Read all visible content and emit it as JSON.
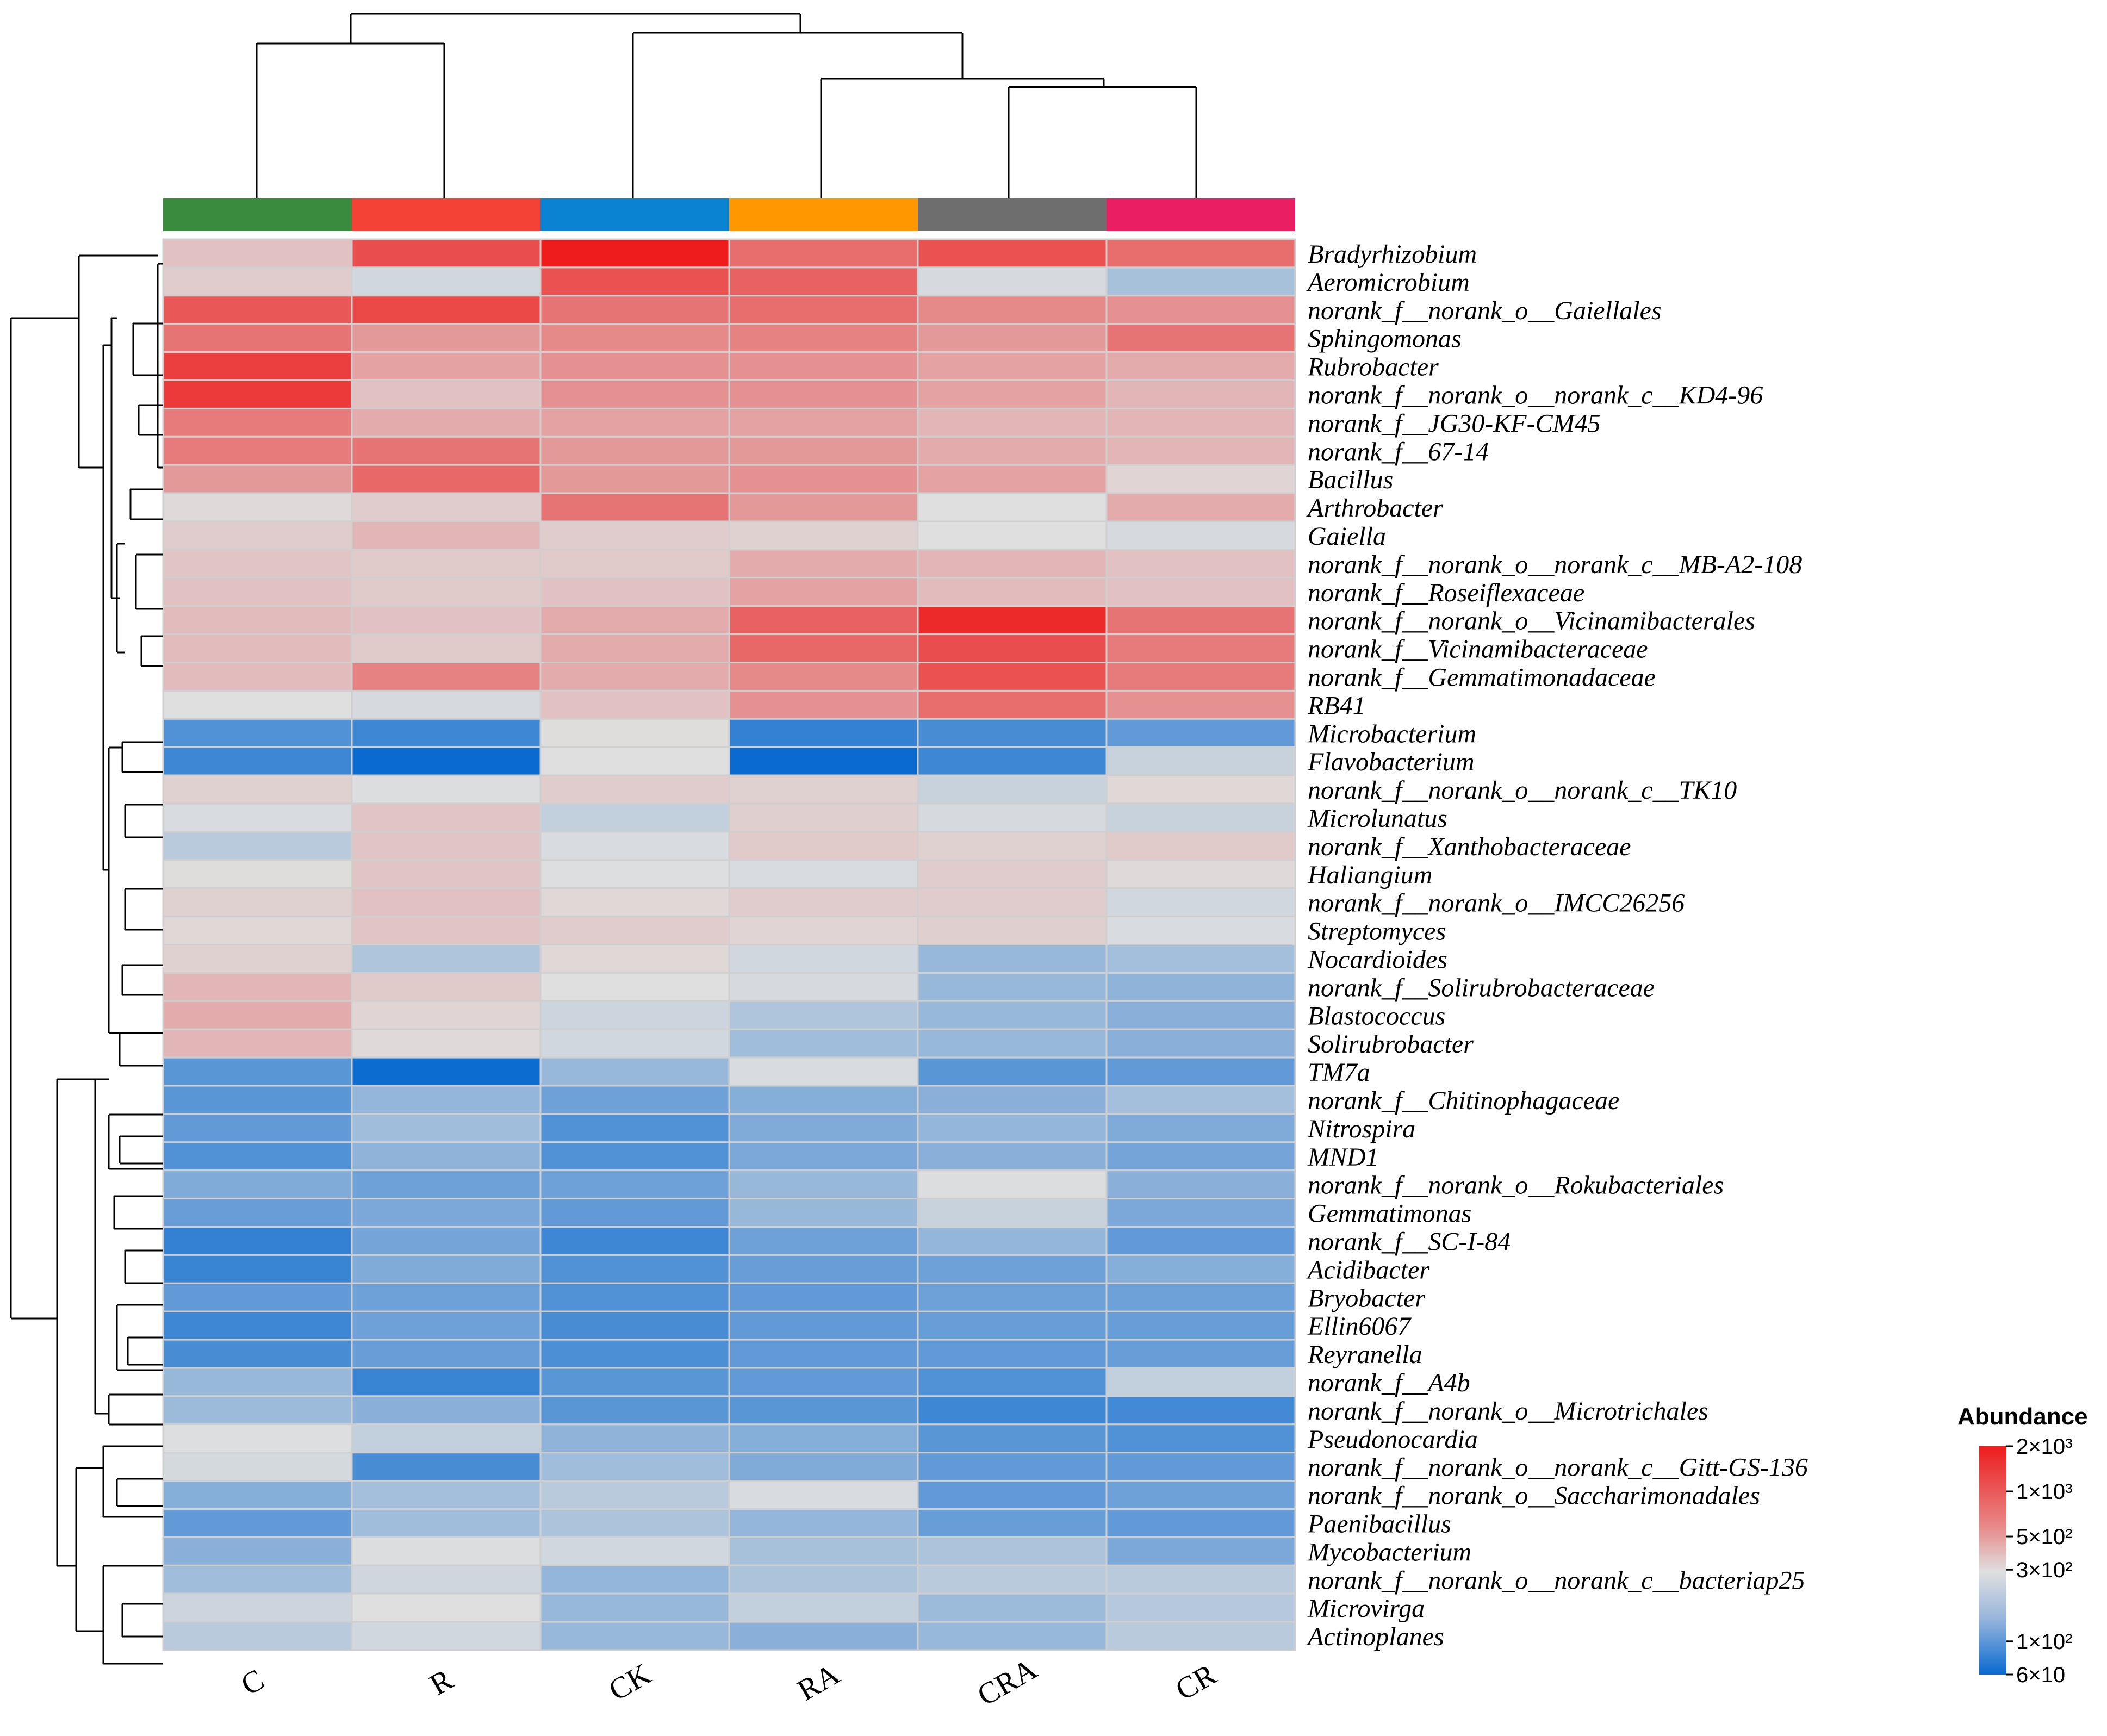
{
  "chart_data": {
    "type": "heatmap",
    "title": "",
    "samples": [
      "C",
      "R",
      "CK",
      "RA",
      "CRA",
      "CR"
    ],
    "sample_colors": [
      "#3a8b3d",
      "#f44336",
      "#0a84d2",
      "#ff9800",
      "#6e6e6e",
      "#e91e63"
    ],
    "taxa": [
      "Bradyrhizobium",
      "Aeromicrobium",
      "norank_f__norank_o__Gaiellales",
      "Sphingomonas",
      "Rubrobacter",
      "norank_f__norank_o__norank_c__KD4-96",
      "norank_f__JG30-KF-CM45",
      "norank_f__67-14",
      "Bacillus",
      "Arthrobacter",
      "Gaiella",
      "norank_f__norank_o__norank_c__MB-A2-108",
      "norank_f__Roseiflexaceae",
      "norank_f__norank_o__Vicinamibacterales",
      "norank_f__Vicinamibacteraceae",
      "norank_f__Gemmatimonadaceae",
      "RB41",
      "Microbacterium",
      "Flavobacterium",
      "norank_f__norank_o__norank_c__TK10",
      "Microlunatus",
      "norank_f__Xanthobacteraceae",
      "Haliangium",
      "norank_f__norank_o__IMCC26256",
      "Streptomyces",
      "Nocardioides",
      "norank_f__Solirubrobacteraceae",
      "Blastococcus",
      "Solirubrobacter",
      "TM7a",
      "norank_f__Chitinophagaceae",
      "Nitrospira",
      "MND1",
      "norank_f__norank_o__Rokubacteriales",
      "Gemmatimonas",
      "norank_f__SC-I-84",
      "Acidibacter",
      "Bryobacter",
      "Ellin6067",
      "Reyranella",
      "norank_f__A4b",
      "norank_f__norank_o__Microtrichales",
      "Pseudonocardia",
      "norank_f__norank_o__norank_c__Gitt-GS-136",
      "norank_f__norank_o__Saccharimonadales",
      "Paenibacillus",
      "Mycobacterium",
      "norank_f__norank_o__norank_c__bacteriap25",
      "Microvirga",
      "Actinoplanes"
    ],
    "values": [
      [
        600,
        1400,
        2000,
        1100,
        1350,
        1100
      ],
      [
        550,
        420,
        1350,
        1200,
        440,
        280
      ],
      [
        1300,
        1450,
        1050,
        1100,
        900,
        850
      ],
      [
        1050,
        800,
        900,
        950,
        800,
        1050
      ],
      [
        1550,
        750,
        850,
        850,
        750,
        700
      ],
      [
        1600,
        600,
        850,
        850,
        750,
        650
      ],
      [
        1000,
        700,
        750,
        750,
        650,
        650
      ],
      [
        1000,
        1050,
        800,
        800,
        700,
        650
      ],
      [
        800,
        1150,
        800,
        850,
        750,
        520
      ],
      [
        500,
        550,
        1050,
        800,
        480,
        700
      ],
      [
        550,
        650,
        550,
        530,
        480,
        440
      ],
      [
        580,
        560,
        560,
        700,
        650,
        600
      ],
      [
        600,
        560,
        600,
        750,
        620,
        600
      ],
      [
        620,
        600,
        700,
        1200,
        1800,
        1050
      ],
      [
        620,
        560,
        700,
        1150,
        1400,
        1000
      ],
      [
        620,
        950,
        700,
        900,
        1350,
        1000
      ],
      [
        480,
        440,
        600,
        850,
        1100,
        850
      ],
      [
        120,
        100,
        490,
        90,
        110,
        140
      ],
      [
        100,
        60,
        480,
        60,
        100,
        380
      ],
      [
        530,
        460,
        550,
        530,
        380,
        510
      ],
      [
        450,
        580,
        360,
        540,
        440,
        380
      ],
      [
        330,
        580,
        450,
        560,
        530,
        560
      ],
      [
        490,
        580,
        470,
        450,
        550,
        500
      ],
      [
        530,
        600,
        510,
        550,
        550,
        420
      ],
      [
        510,
        580,
        550,
        520,
        540,
        450
      ],
      [
        530,
        300,
        510,
        420,
        240,
        270
      ],
      [
        650,
        560,
        480,
        440,
        240,
        220
      ],
      [
        700,
        520,
        400,
        300,
        240,
        210
      ],
      [
        650,
        500,
        420,
        260,
        240,
        210
      ],
      [
        130,
        62,
        240,
        450,
        130,
        140
      ],
      [
        130,
        230,
        160,
        200,
        210,
        270
      ],
      [
        140,
        260,
        120,
        190,
        230,
        190
      ],
      [
        120,
        220,
        120,
        180,
        210,
        170
      ],
      [
        190,
        160,
        160,
        240,
        460,
        210
      ],
      [
        150,
        180,
        140,
        240,
        380,
        180
      ],
      [
        90,
        170,
        100,
        160,
        230,
        140
      ],
      [
        95,
        190,
        120,
        150,
        160,
        200
      ],
      [
        140,
        160,
        120,
        140,
        160,
        160
      ],
      [
        100,
        160,
        110,
        140,
        150,
        150
      ],
      [
        110,
        150,
        115,
        140,
        140,
        150
      ],
      [
        240,
        95,
        130,
        140,
        120,
        360
      ],
      [
        250,
        210,
        130,
        130,
        100,
        105
      ],
      [
        470,
        360,
        220,
        200,
        130,
        120
      ],
      [
        430,
        110,
        260,
        190,
        140,
        140
      ],
      [
        200,
        270,
        330,
        450,
        140,
        160
      ],
      [
        140,
        260,
        290,
        230,
        150,
        140
      ],
      [
        210,
        460,
        420,
        280,
        290,
        180
      ],
      [
        260,
        410,
        230,
        290,
        330,
        330
      ],
      [
        400,
        480,
        240,
        360,
        250,
        320
      ],
      [
        330,
        420,
        240,
        210,
        240,
        330
      ]
    ],
    "color_scale": {
      "title": "Abundance",
      "ticks": [
        "2×10³",
        "1×10³",
        "5×10²",
        "3×10²",
        "1×10²",
        "6×10"
      ],
      "tick_values": [
        2000,
        1000,
        500,
        300,
        100,
        60
      ],
      "low_color": "#0a6ad0",
      "mid_color": "#dfdfdf",
      "high_color": "#ee1c1c"
    }
  }
}
